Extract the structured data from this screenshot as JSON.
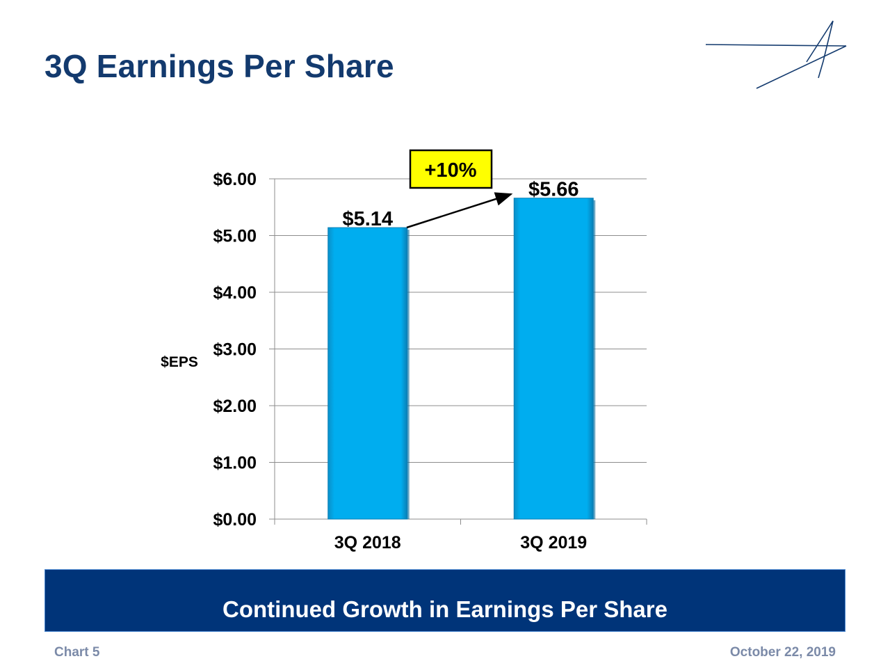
{
  "slide": {
    "title": "3Q Earnings Per Share",
    "banner": "Continued Growth in Earnings Per Share",
    "footer_left": "Chart 5",
    "footer_right": "October 22, 2019"
  },
  "chart_data": {
    "type": "bar",
    "categories": [
      "3Q 2018",
      "3Q 2019"
    ],
    "values": [
      5.14,
      5.66
    ],
    "data_labels": [
      "$5.14",
      "$5.66"
    ],
    "ylabel": "$EPS",
    "ylim": [
      0,
      6
    ],
    "yticks": [
      0,
      1,
      2,
      3,
      4,
      5,
      6
    ],
    "ytick_labels": [
      "$0.00",
      "$1.00",
      "$2.00",
      "$3.00",
      "$4.00",
      "$5.00",
      "$6.00"
    ],
    "grid": true,
    "legend": "none",
    "annotation": "+10%",
    "colors": {
      "bar": "#00ADEF",
      "bar_shadow": "#0a6fa0",
      "annotation_fill": "#FFFF00",
      "title": "#133A6E",
      "banner": "#003479",
      "logo": "#133A6E"
    }
  }
}
